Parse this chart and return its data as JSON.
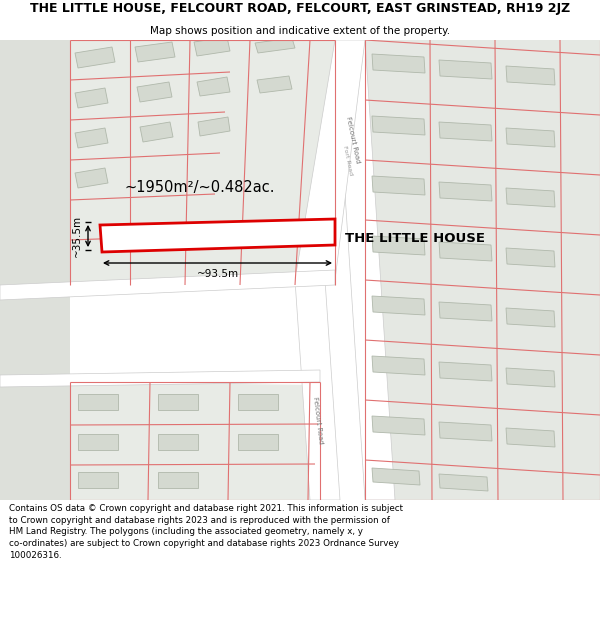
{
  "title_line1": "THE LITTLE HOUSE, FELCOURT ROAD, FELCOURT, EAST GRINSTEAD, RH19 2JZ",
  "title_line2": "Map shows position and indicative extent of the property.",
  "footer": "Contains OS data © Crown copyright and database right 2021. This information is subject\nto Crown copyright and database rights 2023 and is reproduced with the permission of\nHM Land Registry. The polygons (including the associated geometry, namely x, y\nco-ordinates) are subject to Crown copyright and database rights 2023 Ordnance Survey\n100026316.",
  "property_label": "THE LITTLE HOUSE",
  "area_label": "~1950m²/~0.482ac.",
  "width_label": "~93.5m",
  "height_label": "~35.5m",
  "map_bg": "#eaede8",
  "road_color": "#ffffff",
  "building_fill": "#d4d9d0",
  "building_edge": "#b0b8ab",
  "boundary_color": "#e07070",
  "highlight_color": "#dd0000",
  "figsize": [
    6.0,
    6.25
  ],
  "dpi": 100
}
